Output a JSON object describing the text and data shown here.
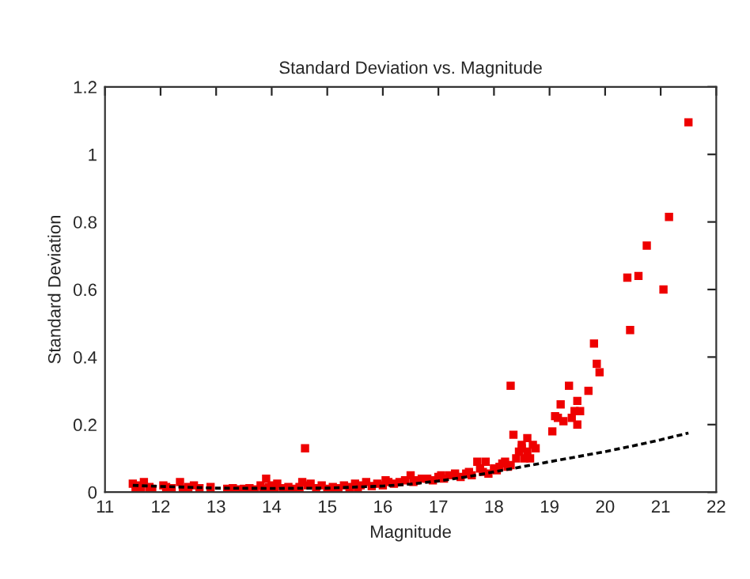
{
  "chart_data": {
    "type": "scatter",
    "title": "Standard Deviation vs. Magnitude",
    "xlabel": "Magnitude",
    "ylabel": "Standard Deviation",
    "xlim": [
      11,
      22
    ],
    "ylim": [
      0,
      1.2
    ],
    "xticks": [
      11,
      12,
      13,
      14,
      15,
      16,
      17,
      18,
      19,
      20,
      21,
      22
    ],
    "yticks": [
      0,
      0.2,
      0.4,
      0.6,
      0.8,
      1,
      1.2
    ],
    "grid": false,
    "legend": false,
    "marker": "square",
    "series": [
      {
        "color": "#ee0000",
        "x": [
          11.5,
          11.55,
          11.6,
          11.65,
          11.7,
          11.8,
          11.85,
          12.05,
          12.1,
          12.2,
          12.35,
          12.4,
          12.5,
          12.6,
          12.7,
          12.9,
          13.2,
          13.3,
          13.4,
          13.5,
          13.6,
          13.7,
          13.8,
          13.85,
          13.9,
          13.95,
          14.0,
          14.05,
          14.1,
          14.2,
          14.3,
          14.4,
          14.5,
          14.55,
          14.6,
          14.65,
          14.7,
          14.8,
          14.9,
          15.0,
          15.1,
          15.2,
          15.3,
          15.4,
          15.5,
          15.55,
          15.6,
          15.7,
          15.8,
          15.9,
          16.0,
          16.05,
          16.1,
          16.2,
          16.3,
          16.4,
          16.5,
          16.55,
          16.6,
          16.7,
          16.8,
          16.9,
          17.0,
          17.05,
          17.1,
          17.2,
          17.3,
          17.4,
          17.5,
          17.55,
          17.6,
          17.7,
          17.75,
          17.8,
          17.85,
          17.9,
          18.0,
          18.05,
          18.1,
          18.15,
          18.2,
          18.25,
          18.3,
          18.3,
          18.35,
          18.4,
          18.45,
          18.5,
          18.5,
          18.55,
          18.6,
          18.6,
          18.65,
          18.7,
          18.75,
          19.05,
          19.1,
          19.15,
          19.2,
          19.25,
          19.35,
          19.4,
          19.45,
          19.5,
          19.5,
          19.55,
          19.7,
          19.8,
          19.85,
          19.9,
          20.4,
          20.45,
          20.6,
          20.75,
          21.05,
          21.15,
          21.5
        ],
        "values": [
          0.025,
          0.015,
          0.02,
          0.01,
          0.03,
          0.015,
          0.01,
          0.02,
          0.015,
          0.012,
          0.03,
          0.01,
          0.015,
          0.02,
          0.012,
          0.015,
          0.01,
          0.012,
          0.008,
          0.01,
          0.012,
          0.008,
          0.02,
          0.01,
          0.04,
          0.015,
          0.02,
          0.01,
          0.025,
          0.012,
          0.015,
          0.01,
          0.015,
          0.03,
          0.13,
          0.02,
          0.025,
          0.012,
          0.02,
          0.01,
          0.015,
          0.012,
          0.02,
          0.015,
          0.025,
          0.012,
          0.02,
          0.03,
          0.018,
          0.025,
          0.02,
          0.035,
          0.03,
          0.025,
          0.03,
          0.035,
          0.05,
          0.03,
          0.035,
          0.04,
          0.04,
          0.035,
          0.045,
          0.05,
          0.04,
          0.05,
          0.055,
          0.045,
          0.055,
          0.06,
          0.05,
          0.09,
          0.07,
          0.06,
          0.09,
          0.055,
          0.07,
          0.065,
          0.075,
          0.085,
          0.09,
          0.075,
          0.08,
          0.315,
          0.17,
          0.1,
          0.12,
          0.13,
          0.14,
          0.1,
          0.16,
          0.12,
          0.1,
          0.14,
          0.13,
          0.18,
          0.225,
          0.22,
          0.26,
          0.21,
          0.315,
          0.22,
          0.24,
          0.27,
          0.2,
          0.24,
          0.3,
          0.44,
          0.38,
          0.355,
          0.635,
          0.48,
          0.64,
          0.73,
          0.6,
          0.815,
          1.095
        ]
      },
      {
        "type": "line",
        "color": "#000000",
        "line_style": "dashed",
        "marker": "none",
        "x": [
          11.5,
          12,
          13,
          14,
          15,
          16,
          16.5,
          17,
          17.5,
          18,
          18.5,
          19,
          19.5,
          20,
          20.5,
          21,
          21.5
        ],
        "values": [
          0.02,
          0.017,
          0.012,
          0.011,
          0.012,
          0.018,
          0.024,
          0.033,
          0.045,
          0.06,
          0.075,
          0.09,
          0.105,
          0.12,
          0.137,
          0.155,
          0.175
        ]
      }
    ]
  }
}
